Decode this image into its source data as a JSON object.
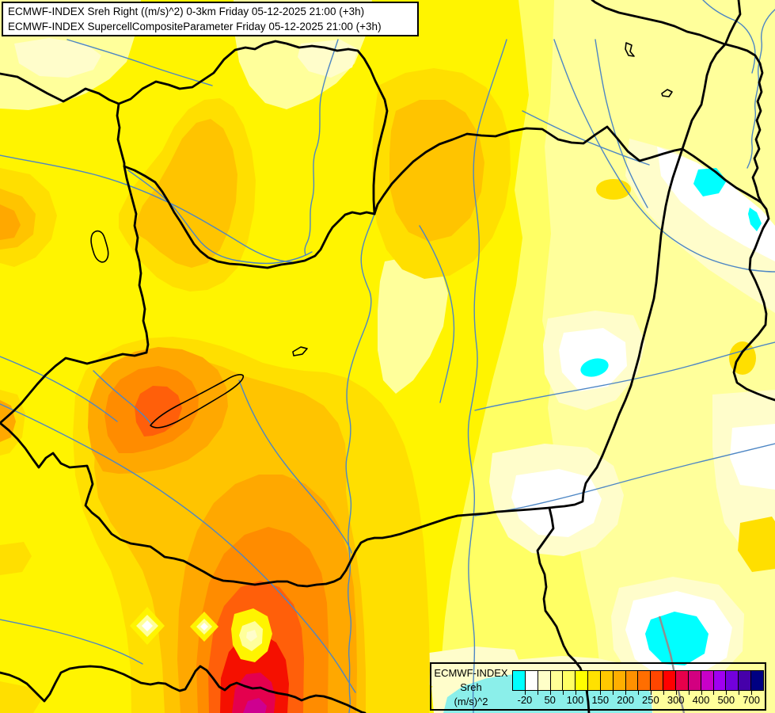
{
  "title_box": {
    "line1": "ECMWF-INDEX Sreh Right ((m/s)^2) 0-3km Friday 05-12-2025 21:00 (+3h)",
    "line2": "ECMWF-INDEX SupercellCompositeParameter Friday 05-12-2025 21:00 (+3h)"
  },
  "legend": {
    "title_lines": [
      "ECMWF-INDEX",
      "Sreh",
      "(m/s)^2"
    ],
    "tick_labels": [
      "-20",
      "50",
      "100",
      "150",
      "200",
      "250",
      "300",
      "400",
      "500",
      "700"
    ],
    "palette": [
      "#00FFFF",
      "#FFFFFF",
      "#FFFFC8",
      "#FFFF96",
      "#FFFF64",
      "#FFFF00",
      "#FFE100",
      "#FFC800",
      "#FFAF00",
      "#FF9100",
      "#FF6E00",
      "#FF4600",
      "#FF0000",
      "#E8004B",
      "#D20080",
      "#C800C8",
      "#A000F0",
      "#7300DC",
      "#4600AA",
      "#000082"
    ]
  },
  "colors": {
    "map_base": "#FFFF64",
    "map_bright": "#FFF400",
    "map_pale": "#FFFF9B",
    "map_very_pale": "#FFFDCB",
    "map_white": "#FFFFFF",
    "map_cyan": "#00FFFF",
    "map_light_cyan": "#8BEFEA",
    "map_gold": "#FFDF00",
    "map_orange": "#FFC400",
    "map_deep_orange": "#FFA800",
    "map_dark_orange": "#FF8C00",
    "map_orange_red": "#FF5F0A",
    "map_red": "#F51000",
    "map_crimson": "#E4004E",
    "map_magenta": "#CE0090",
    "border": "#000000",
    "river": "#4D86C4",
    "road": "#8F8F8F",
    "box_bg": "#FFFFFF",
    "text": "#000000"
  }
}
